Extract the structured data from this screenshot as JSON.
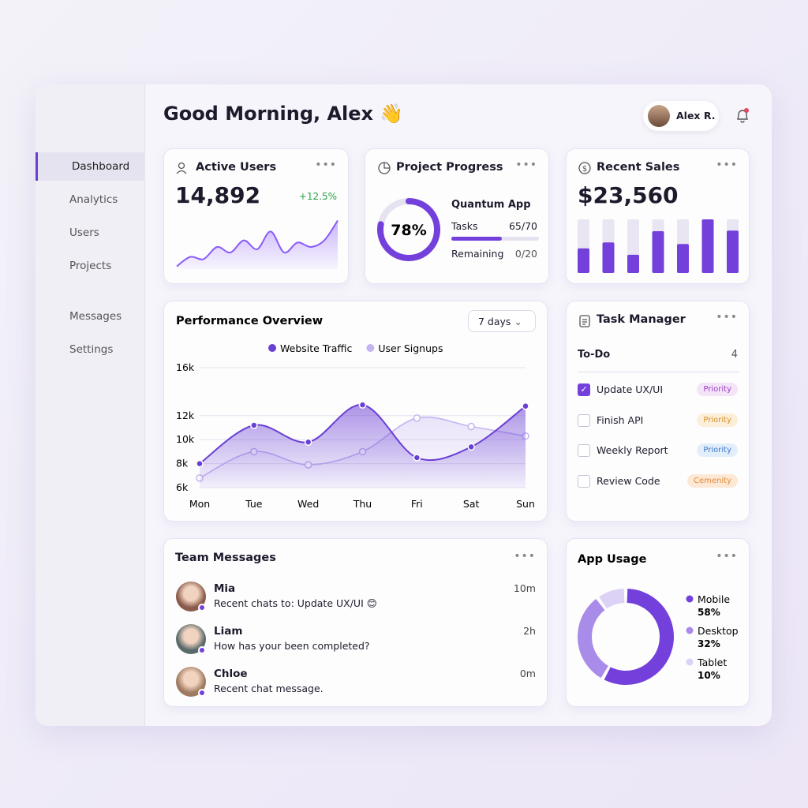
{
  "header": {
    "greeting": "Good Morning, Alex 👋",
    "user_name": "Alex R."
  },
  "sidebar": {
    "items": [
      "Dashboard",
      "Analytics",
      "Users",
      "Projects",
      "Messages",
      "Settings"
    ]
  },
  "active_users": {
    "title": "Active Users",
    "value": "14,892",
    "change": "+12.5%"
  },
  "project_progress": {
    "title": "Project Progress",
    "project": "Quantum App",
    "tasks_label": "Tasks",
    "tasks": "65/70",
    "remaining_label": "Remaining",
    "remaining": "0/20"
  },
  "recent_sales": {
    "title": "Recent Sales",
    "value": "$23,560"
  },
  "performance": {
    "range_selector": "7 days"
  },
  "task_manager": {
    "title": "Task Manager",
    "list_name": "To-Do",
    "count": 4,
    "tasks": [
      {
        "label": "Update UX/UI",
        "tag": "Priority",
        "done": true
      },
      {
        "label": "Finish API",
        "tag": "Priority",
        "done": false
      },
      {
        "label": "Weekly Report",
        "tag": "Priority",
        "done": false
      },
      {
        "label": "Review Code",
        "tag": "Cemenity",
        "done": false
      }
    ]
  },
  "team_messages": {
    "title": "Team Messages",
    "messages": [
      {
        "name": "Mia",
        "text": "Recent chats to: Update UX/UI 😊",
        "time": "10m"
      },
      {
        "name": "Liam",
        "text": "How has your been completed?",
        "time": "2h"
      },
      {
        "name": "Chloe",
        "text": "Recent chat message.",
        "time": "0m"
      }
    ]
  },
  "chart_data": [
    {
      "type": "area",
      "values": [
        5,
        22,
        18,
        40,
        30,
        52,
        36,
        68,
        30,
        48,
        40,
        52,
        88
      ],
      "ylim": [
        0,
        100
      ],
      "color": "#8b5cf6"
    },
    {
      "type": "progress-ring",
      "values": [
        78
      ],
      "value_labels": [
        "78%"
      ],
      "ylim": [
        0,
        100
      ],
      "color": "#7440dc"
    },
    {
      "type": "bar",
      "values": [
        46,
        57,
        34,
        78,
        54,
        100,
        79
      ],
      "ylim": [
        0,
        100
      ],
      "color": "#7440dc"
    },
    {
      "type": "line",
      "title": "Performance Overview",
      "categories": [
        "Mon",
        "Tue",
        "Wed",
        "Thu",
        "Fri",
        "Sat",
        "Sun"
      ],
      "series": [
        {
          "name": "Website Traffic",
          "color": "#6a3fd4",
          "values": [
            8000,
            11200,
            9800,
            12900,
            8500,
            9400,
            12800
          ]
        },
        {
          "name": "User Signups",
          "color": "#c4b4ef",
          "values": [
            6800,
            9000,
            7900,
            9000,
            11800,
            11100,
            10300
          ]
        }
      ],
      "ylim": [
        6000,
        16000
      ],
      "yticks": [
        {
          "value": 6000,
          "label": "6k"
        },
        {
          "value": 8000,
          "label": "8k"
        },
        {
          "value": 10000,
          "label": "10k"
        },
        {
          "value": 12000,
          "label": "12k"
        },
        {
          "value": 16000,
          "label": "16k"
        }
      ],
      "grid": true
    },
    {
      "type": "donut",
      "title": "App Usage",
      "categories": [
        "Mobile",
        "Desktop",
        "Tablet"
      ],
      "values": [
        58,
        32,
        10
      ],
      "value_labels": [
        "58%",
        "32%",
        "10%"
      ],
      "colors": [
        "#7440dc",
        "#a98be9",
        "#dcd2f6"
      ]
    }
  ]
}
